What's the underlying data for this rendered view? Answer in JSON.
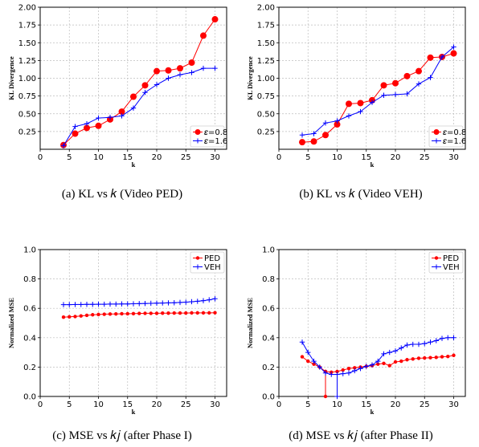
{
  "chart_data": [
    {
      "type": "line",
      "caption": "(a)  KL vs 𝑘 (Video PED)",
      "xlabel": "k",
      "ylabel": "KL Divergence",
      "xlim": [
        0,
        32
      ],
      "ylim": [
        0,
        2.0
      ],
      "xticks": [
        0,
        5,
        10,
        15,
        20,
        25,
        30
      ],
      "yticks": [
        0.25,
        0.5,
        0.75,
        1.0,
        1.25,
        1.5,
        1.75,
        2.0
      ],
      "ytick_labels": [
        "0.25",
        "0.50",
        "0.75",
        "1.00",
        "1.25",
        "1.50",
        "1.75",
        "2.00"
      ],
      "grid": true,
      "legend_position": "bottom-right",
      "series": [
        {
          "name": "𝜀=0.8",
          "color": "#ff0000",
          "marker": "circle",
          "x": [
            4,
            6,
            8,
            10,
            12,
            14,
            16,
            18,
            20,
            22,
            24,
            26,
            28,
            30
          ],
          "y": [
            0.06,
            0.22,
            0.3,
            0.33,
            0.42,
            0.53,
            0.74,
            0.9,
            1.1,
            1.11,
            1.14,
            1.22,
            1.6,
            1.83
          ]
        },
        {
          "name": "𝜀=1.6",
          "color": "#0000ff",
          "marker": "plus",
          "x": [
            4,
            6,
            8,
            10,
            12,
            14,
            16,
            18,
            20,
            22,
            24,
            26,
            28,
            30
          ],
          "y": [
            0.05,
            0.32,
            0.36,
            0.44,
            0.45,
            0.47,
            0.58,
            0.8,
            0.91,
            1.0,
            1.05,
            1.08,
            1.14,
            1.14
          ]
        }
      ]
    },
    {
      "type": "line",
      "caption": "(b)  KL vs 𝑘 (Video VEH)",
      "xlabel": "k",
      "ylabel": "KL Divergence",
      "xlim": [
        0,
        32
      ],
      "ylim": [
        0,
        2.0
      ],
      "xticks": [
        0,
        5,
        10,
        15,
        20,
        25,
        30
      ],
      "yticks": [
        0.25,
        0.5,
        0.75,
        1.0,
        1.25,
        1.5,
        1.75,
        2.0
      ],
      "ytick_labels": [
        "0.25",
        "0.50",
        "0.75",
        "1.00",
        "1.25",
        "1.50",
        "1.75",
        "2.00"
      ],
      "grid": true,
      "legend_position": "bottom-right",
      "series": [
        {
          "name": "𝜀=0.8",
          "color": "#ff0000",
          "marker": "circle",
          "x": [
            4,
            6,
            8,
            10,
            12,
            14,
            16,
            18,
            20,
            22,
            24,
            26,
            28,
            30
          ],
          "y": [
            0.1,
            0.11,
            0.2,
            0.35,
            0.64,
            0.65,
            0.69,
            0.9,
            0.93,
            1.03,
            1.1,
            1.29,
            1.3,
            1.35
          ]
        },
        {
          "name": "𝜀=1.6",
          "color": "#0000ff",
          "marker": "plus",
          "x": [
            4,
            6,
            8,
            10,
            12,
            14,
            16,
            18,
            20,
            22,
            24,
            26,
            28,
            30
          ],
          "y": [
            0.2,
            0.22,
            0.37,
            0.4,
            0.47,
            0.53,
            0.66,
            0.76,
            0.77,
            0.78,
            0.92,
            1.01,
            1.3,
            1.44
          ]
        }
      ]
    },
    {
      "type": "line",
      "caption": "(c)  MSE vs 𝑘𝑗 (after Phase I)",
      "xlabel": "k",
      "ylabel": "Normalized MSE",
      "xlim": [
        0,
        32
      ],
      "ylim": [
        0,
        1.0
      ],
      "xticks": [
        0,
        5,
        10,
        15,
        20,
        25,
        30
      ],
      "yticks": [
        0.0,
        0.2,
        0.4,
        0.6,
        0.8,
        1.0
      ],
      "ytick_labels": [
        "0.0",
        "0.2",
        "0.4",
        "0.6",
        "0.8",
        "1.0"
      ],
      "grid": true,
      "legend_position": "top-right",
      "series": [
        {
          "name": "PED",
          "color": "#ff0000",
          "marker": "dot",
          "x": [
            4,
            5,
            6,
            7,
            8,
            9,
            10,
            11,
            12,
            13,
            14,
            15,
            16,
            17,
            18,
            19,
            20,
            21,
            22,
            23,
            24,
            25,
            26,
            27,
            28,
            29,
            30
          ],
          "y": [
            0.54,
            0.542,
            0.544,
            0.548,
            0.552,
            0.556,
            0.558,
            0.56,
            0.561,
            0.562,
            0.563,
            0.563,
            0.564,
            0.565,
            0.566,
            0.566,
            0.566,
            0.567,
            0.567,
            0.568,
            0.568,
            0.568,
            0.569,
            0.569,
            0.569,
            0.569,
            0.57
          ]
        },
        {
          "name": "VEH",
          "color": "#0000ff",
          "marker": "plus",
          "x": [
            4,
            5,
            6,
            7,
            8,
            9,
            10,
            11,
            12,
            13,
            14,
            15,
            16,
            17,
            18,
            19,
            20,
            21,
            22,
            23,
            24,
            25,
            26,
            27,
            28,
            29,
            30
          ],
          "y": [
            0.625,
            0.625,
            0.626,
            0.626,
            0.627,
            0.627,
            0.628,
            0.628,
            0.629,
            0.629,
            0.63,
            0.63,
            0.631,
            0.632,
            0.633,
            0.634,
            0.635,
            0.636,
            0.637,
            0.638,
            0.64,
            0.642,
            0.645,
            0.648,
            0.652,
            0.658,
            0.665
          ]
        }
      ]
    },
    {
      "type": "line",
      "caption": "(d)  MSE vs 𝑘𝑗 (after Phase II)",
      "xlabel": "k",
      "ylabel": "Normalized MSE",
      "xlim": [
        0,
        32
      ],
      "ylim": [
        0,
        1.0
      ],
      "xticks": [
        0,
        5,
        10,
        15,
        20,
        25,
        30
      ],
      "yticks": [
        0.0,
        0.2,
        0.4,
        0.6,
        0.8,
        1.0
      ],
      "ytick_labels": [
        "0.0",
        "0.2",
        "0.4",
        "0.6",
        "0.8",
        "1.0"
      ],
      "grid": true,
      "legend_position": "top-right",
      "series": [
        {
          "name": "PED",
          "color": "#ff0000",
          "marker": "dot",
          "x": [
            4,
            5,
            6,
            7,
            8,
            8,
            8,
            9,
            10,
            11,
            12,
            13,
            14,
            15,
            16,
            17,
            18,
            19,
            20,
            21,
            22,
            23,
            24,
            25,
            26,
            27,
            28,
            29,
            30
          ],
          "y": [
            0.27,
            0.24,
            0.22,
            0.2,
            0.17,
            0.0,
            0.17,
            0.165,
            0.17,
            0.18,
            0.19,
            0.195,
            0.2,
            0.205,
            0.21,
            0.22,
            0.225,
            0.21,
            0.235,
            0.24,
            0.25,
            0.255,
            0.26,
            0.262,
            0.264,
            0.266,
            0.27,
            0.272,
            0.28
          ]
        },
        {
          "name": "VEH",
          "color": "#0000ff",
          "marker": "plus",
          "x": [
            4,
            5,
            6,
            7,
            8,
            9,
            10,
            10,
            10,
            11,
            12,
            13,
            14,
            15,
            16,
            17,
            18,
            19,
            20,
            21,
            22,
            23,
            24,
            25,
            26,
            27,
            28,
            29,
            30
          ],
          "y": [
            0.37,
            0.3,
            0.24,
            0.2,
            0.16,
            0.15,
            0.15,
            0.0,
            0.15,
            0.155,
            0.16,
            0.175,
            0.19,
            0.205,
            0.215,
            0.24,
            0.29,
            0.3,
            0.31,
            0.33,
            0.35,
            0.355,
            0.355,
            0.36,
            0.37,
            0.38,
            0.395,
            0.4,
            0.4
          ]
        }
      ]
    }
  ]
}
